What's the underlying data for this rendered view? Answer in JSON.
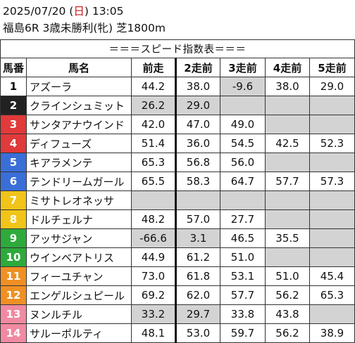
{
  "header": {
    "date": "2025/07/20",
    "weekday": "日",
    "time": "13:05",
    "race_info": "福島6R 3歳未勝利(牝) 芝1800m"
  },
  "table": {
    "title": "＝＝＝スピード指数表＝＝＝",
    "columns": [
      "馬番",
      "馬名",
      "前走",
      "2走前",
      "3走前",
      "4走前",
      "5走前"
    ],
    "rows": [
      {
        "num": "1",
        "bg": "#ffffff",
        "fg": "#000000",
        "name": "アズーラ",
        "v": [
          "44.2",
          "38.0",
          "-9.6",
          "38.0",
          "29.0"
        ],
        "g": [
          false,
          false,
          true,
          false,
          false
        ]
      },
      {
        "num": "2",
        "bg": "#222222",
        "fg": "#ffffff",
        "name": "クラインシュミット",
        "v": [
          "26.2",
          "29.0",
          "",
          "",
          ""
        ],
        "g": [
          true,
          true,
          true,
          true,
          true
        ]
      },
      {
        "num": "3",
        "bg": "#e03a3a",
        "fg": "#ffffff",
        "name": "サンタアナウインド",
        "v": [
          "42.0",
          "47.0",
          "49.0",
          "",
          ""
        ],
        "g": [
          false,
          false,
          false,
          true,
          true
        ]
      },
      {
        "num": "4",
        "bg": "#e03a3a",
        "fg": "#ffffff",
        "name": "ディフューズ",
        "v": [
          "51.4",
          "36.0",
          "54.5",
          "42.5",
          "52.3"
        ],
        "g": [
          false,
          false,
          false,
          false,
          false
        ]
      },
      {
        "num": "5",
        "bg": "#3a6fd8",
        "fg": "#ffffff",
        "name": "キアラメンテ",
        "v": [
          "65.3",
          "56.8",
          "56.0",
          "",
          ""
        ],
        "g": [
          false,
          false,
          false,
          true,
          true
        ]
      },
      {
        "num": "6",
        "bg": "#3a6fd8",
        "fg": "#ffffff",
        "name": "テンドリームガール",
        "v": [
          "65.5",
          "58.3",
          "64.7",
          "57.7",
          "57.3"
        ],
        "g": [
          false,
          false,
          false,
          false,
          false
        ]
      },
      {
        "num": "7",
        "bg": "#f0c419",
        "fg": "#ffffff",
        "name": "ミサトレオネッサ",
        "v": [
          "",
          "",
          "",
          "",
          ""
        ],
        "g": [
          true,
          true,
          true,
          true,
          true
        ]
      },
      {
        "num": "8",
        "bg": "#f0c419",
        "fg": "#ffffff",
        "name": "ドルチェルナ",
        "v": [
          "48.2",
          "57.0",
          "27.7",
          "",
          ""
        ],
        "g": [
          false,
          false,
          false,
          true,
          true
        ]
      },
      {
        "num": "9",
        "bg": "#2eaa3c",
        "fg": "#ffffff",
        "name": "アッサジャン",
        "v": [
          "-66.6",
          "3.1",
          "46.5",
          "35.5",
          ""
        ],
        "g": [
          true,
          true,
          false,
          false,
          true
        ]
      },
      {
        "num": "10",
        "bg": "#2eaa3c",
        "fg": "#ffffff",
        "name": "ウインベアトリス",
        "v": [
          "44.9",
          "61.2",
          "51.0",
          "",
          ""
        ],
        "g": [
          false,
          false,
          false,
          true,
          true
        ]
      },
      {
        "num": "11",
        "bg": "#ef9025",
        "fg": "#ffffff",
        "name": "フィーユチャン",
        "v": [
          "73.0",
          "61.8",
          "53.1",
          "51.0",
          "45.4"
        ],
        "g": [
          false,
          false,
          false,
          false,
          false
        ]
      },
      {
        "num": "12",
        "bg": "#ef9025",
        "fg": "#ffffff",
        "name": "エンゲルシュピール",
        "v": [
          "69.2",
          "62.0",
          "57.7",
          "56.2",
          "65.3"
        ],
        "g": [
          false,
          false,
          false,
          false,
          false
        ]
      },
      {
        "num": "13",
        "bg": "#f08aa2",
        "fg": "#ffffff",
        "name": "ヌンルチル",
        "v": [
          "33.2",
          "29.7",
          "33.8",
          "43.8",
          ""
        ],
        "g": [
          true,
          true,
          false,
          false,
          true
        ]
      },
      {
        "num": "14",
        "bg": "#f08aa2",
        "fg": "#ffffff",
        "name": "サルーポルティ",
        "v": [
          "48.1",
          "53.0",
          "59.7",
          "56.2",
          "38.9"
        ],
        "g": [
          false,
          false,
          false,
          false,
          false
        ]
      }
    ]
  }
}
